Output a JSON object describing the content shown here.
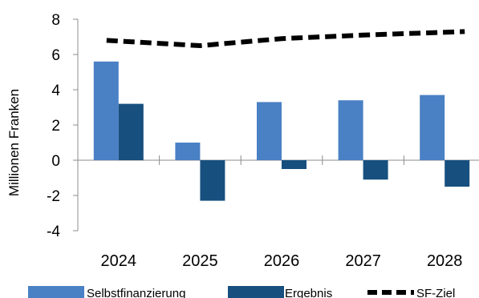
{
  "chart_data": {
    "type": "bar",
    "categories": [
      "2024",
      "2025",
      "2026",
      "2027",
      "2028"
    ],
    "series": [
      {
        "name": "Selbstfinanzierung",
        "kind": "bar",
        "color": "#4a80c4",
        "values": [
          5.6,
          1.0,
          3.3,
          3.4,
          3.7
        ]
      },
      {
        "name": "Ergebnis",
        "kind": "bar",
        "color": "#174f7f",
        "values": [
          3.2,
          -2.3,
          -0.5,
          -1.1,
          -1.5
        ]
      },
      {
        "name": "SF-Ziel",
        "kind": "line",
        "style": "dashed",
        "color": "#000000",
        "values": [
          6.8,
          6.5,
          6.9,
          7.1,
          7.3
        ]
      }
    ],
    "ylabel": "Millionen Franken",
    "ylim": [
      -4,
      8
    ],
    "yticks": [
      "-4",
      "-2",
      "0",
      "2",
      "4",
      "6",
      "8"
    ],
    "grid": false,
    "legend": "bottom"
  }
}
